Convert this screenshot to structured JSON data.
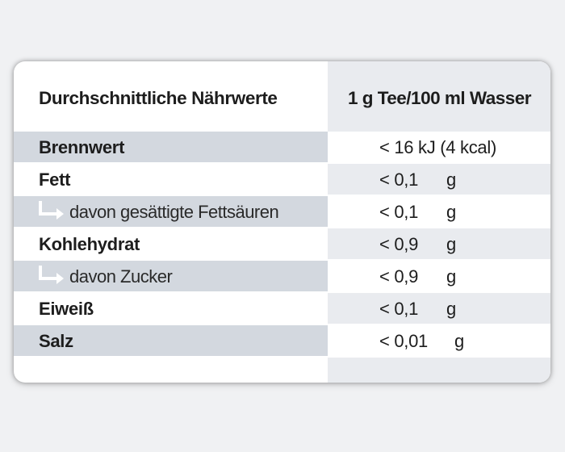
{
  "table": {
    "header": {
      "label": "Durchschnittliche Nährwerte",
      "value": "1 g Tee/100 ml Wasser"
    },
    "rows": [
      {
        "label": "Brennwert",
        "value": "< 16 kJ (4 kcal)",
        "unit": "",
        "sub": false
      },
      {
        "label": "Fett",
        "value": "< 0,1",
        "unit": "g",
        "sub": false
      },
      {
        "label": "davon gesättigte Fettsäuren",
        "value": "< 0,1",
        "unit": "g",
        "sub": true
      },
      {
        "label": "Kohlehydrat",
        "value": "< 0,9",
        "unit": "g",
        "sub": false
      },
      {
        "label": "davon Zucker",
        "value": "< 0,9",
        "unit": "g",
        "sub": true
      },
      {
        "label": "Eiweiß",
        "value": "< 0,1",
        "unit": "g",
        "sub": false
      },
      {
        "label": "Salz",
        "value": "< 0,01",
        "unit": "g",
        "sub": false
      }
    ]
  },
  "colors": {
    "page_background": "#f0f1f3",
    "shaded_row": "#d3d8df",
    "value_column": "#e9ebef",
    "sub_arrow": "#ffffff",
    "text": "#1d1d1d"
  },
  "icons": {
    "sub_item_arrow": "arrow-turn-right-icon"
  }
}
